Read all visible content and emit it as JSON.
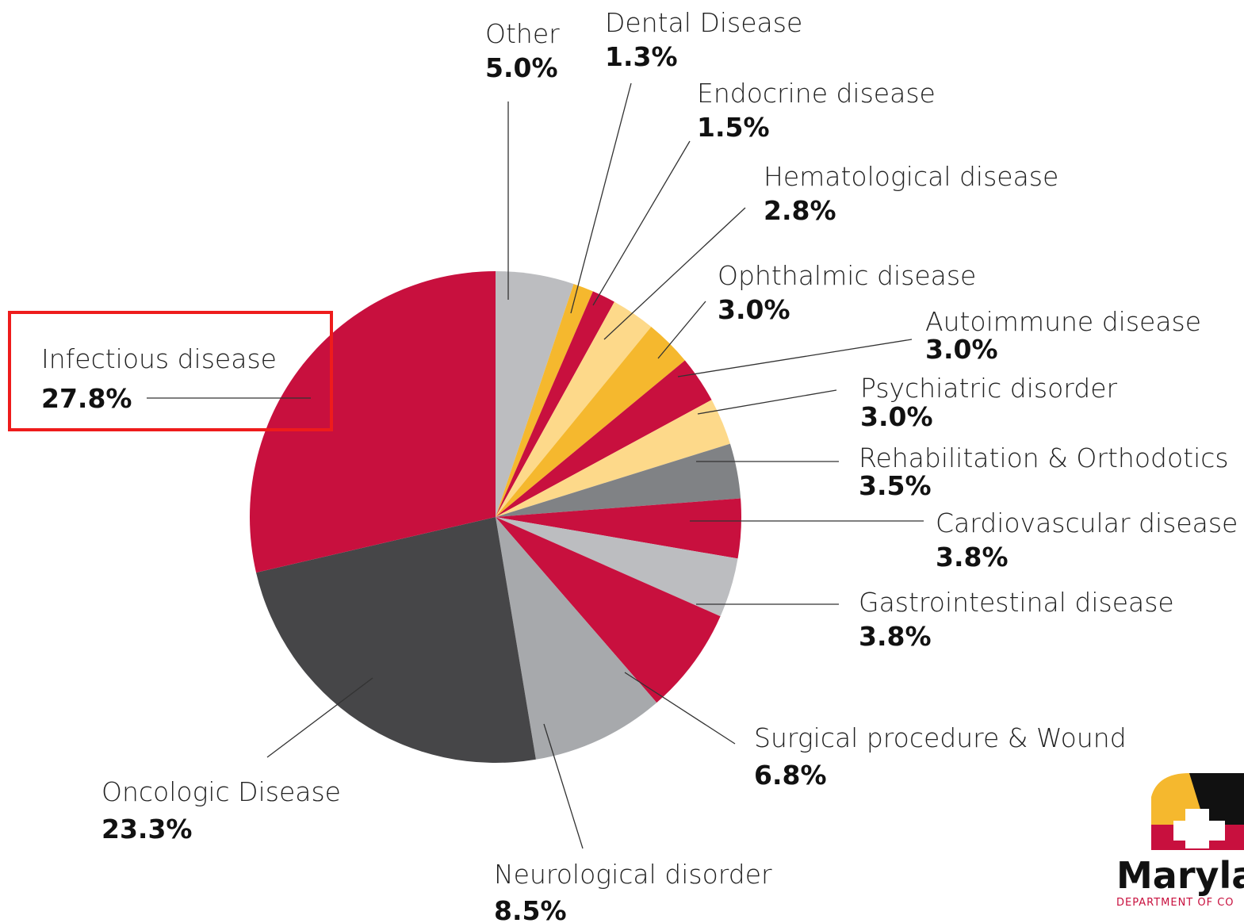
{
  "chart_data": {
    "type": "pie",
    "categories": [
      "Other",
      "Dental Disease",
      "Endocrine disease",
      "Hematological disease",
      "Ophthalmic disease",
      "Autoimmune disease",
      "Psychiatric disorder",
      "Rehabilitation & Orthodotics",
      "Cardiovascular disease",
      "Gastrointestinal disease",
      "Surgical procedure & Wound",
      "Neurological disorder",
      "Oncologic Disease",
      "Infectious disease"
    ],
    "values": [
      5.0,
      1.3,
      1.5,
      2.8,
      3.0,
      3.0,
      3.0,
      3.5,
      3.8,
      3.8,
      6.8,
      8.5,
      23.3,
      27.8
    ],
    "value_labels": [
      "5.0%",
      "1.3%",
      "1.5%",
      "2.8%",
      "3.0%",
      "3.0%",
      "3.0%",
      "3.5%",
      "3.8%",
      "3.8%",
      "6.8%",
      "8.5%",
      "23.3%",
      "27.8%"
    ],
    "colors": [
      "#bcbdc0",
      "#f5b82e",
      "#c8103e",
      "#fdd98a",
      "#f5b82e",
      "#c8103e",
      "#fdd98a",
      "#808285",
      "#c8103e",
      "#bcbdc0",
      "#c8103e",
      "#a7a9ac",
      "#464648",
      "#c8103e"
    ]
  },
  "logo": {
    "text": "Maryla",
    "subtext": "DEPARTMENT OF CO"
  }
}
